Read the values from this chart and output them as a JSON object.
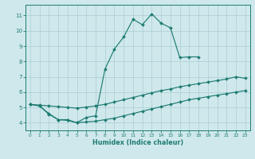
{
  "xlabel": "Humidex (Indice chaleur)",
  "bg_color": "#cfe8ec",
  "grid_color": "#aacdd4",
  "line_color": "#1e7c72",
  "xlim": [
    -0.5,
    23.5
  ],
  "ylim": [
    3.5,
    11.7
  ],
  "xticks": [
    0,
    1,
    2,
    3,
    4,
    5,
    6,
    7,
    8,
    9,
    10,
    11,
    12,
    13,
    14,
    15,
    16,
    17,
    18,
    19,
    20,
    21,
    22,
    23
  ],
  "yticks": [
    4,
    5,
    6,
    7,
    8,
    9,
    10,
    11
  ],
  "curve_x": [
    0,
    1,
    2,
    3,
    4,
    5,
    6,
    7,
    8,
    9,
    10,
    11,
    12,
    13,
    14,
    15,
    16,
    17,
    18
  ],
  "curve_y": [
    5.2,
    5.1,
    4.6,
    4.2,
    4.2,
    4.0,
    4.35,
    4.45,
    7.5,
    8.8,
    9.6,
    10.75,
    10.4,
    11.1,
    10.5,
    10.2,
    8.25,
    8.3,
    8.3
  ],
  "diag1_x": [
    0,
    1,
    2,
    3,
    4,
    5,
    6,
    7,
    8,
    9,
    10,
    11,
    12,
    13,
    14,
    15,
    16,
    17,
    18,
    19,
    20,
    21,
    22,
    23
  ],
  "diag1_y": [
    5.2,
    5.15,
    5.1,
    5.05,
    5.0,
    4.95,
    5.02,
    5.1,
    5.2,
    5.35,
    5.5,
    5.65,
    5.8,
    5.95,
    6.1,
    6.2,
    6.35,
    6.45,
    6.55,
    6.65,
    6.75,
    6.85,
    7.0,
    6.9
  ],
  "diag2_x": [
    0,
    1,
    2,
    3,
    4,
    5,
    6,
    7,
    8,
    9,
    10,
    11,
    12,
    13,
    14,
    15,
    16,
    17,
    18,
    19,
    20,
    21,
    22,
    23
  ],
  "diag2_y": [
    5.2,
    5.1,
    4.55,
    4.2,
    4.15,
    4.0,
    4.05,
    4.1,
    4.2,
    4.3,
    4.45,
    4.6,
    4.75,
    4.9,
    5.05,
    5.2,
    5.35,
    5.5,
    5.6,
    5.7,
    5.8,
    5.9,
    6.0,
    6.1
  ]
}
